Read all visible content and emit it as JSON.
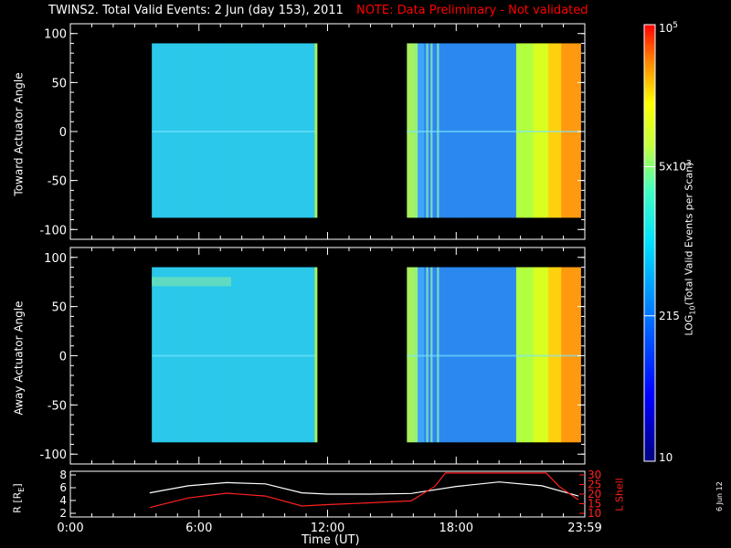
{
  "title": {
    "main": "TWINS2. Total Valid Events:  2 Jun (day 153), 2011",
    "note": "NOTE: Data Preliminary - Not validated"
  },
  "chart_data": [
    {
      "type": "heatmap",
      "ylabel": "Toward Actuator Angle",
      "ylim": [
        -110,
        110
      ],
      "yticks": [
        "100",
        "50",
        "0",
        "-50",
        "-100"
      ],
      "xlim": [
        0,
        24
      ],
      "data_intervals_hours": [
        [
          3.8,
          11.4
        ],
        [
          15.7,
          23.8
        ]
      ]
    },
    {
      "type": "heatmap",
      "ylabel": "Away Actuator Angle",
      "ylim": [
        -110,
        110
      ],
      "yticks": [
        "100",
        "50",
        "0",
        "-50",
        "-100"
      ],
      "xlim": [
        0,
        24
      ],
      "data_intervals_hours": [
        [
          3.8,
          11.4
        ],
        [
          15.7,
          23.8
        ]
      ]
    },
    {
      "type": "line",
      "ylabel": "R [Re]",
      "y2label": "L Shell",
      "yticks": [
        "8",
        "6",
        "4",
        "2"
      ],
      "y2ticks": [
        "30",
        "25",
        "20",
        "15",
        "10"
      ],
      "xticks": [
        "0:00",
        "6:00",
        "12:00",
        "18:00",
        "23:59"
      ],
      "xlabel": "Time (UT)",
      "series": [
        {
          "name": "R",
          "x": [
            3.7,
            5.5,
            7.3,
            9.1,
            10.8,
            12,
            14,
            15.9,
            18,
            20,
            22,
            23.7
          ],
          "values": [
            5.2,
            6.3,
            6.8,
            6.6,
            5.2,
            5.0,
            5.0,
            5.1,
            6.2,
            6.9,
            6.3,
            4.7
          ]
        },
        {
          "name": "L Shell",
          "x": [
            3.7,
            5.5,
            7.3,
            9.1,
            10.8,
            12,
            14,
            15.9,
            17,
            17.5,
            22.2,
            22.8,
            23.7
          ],
          "values": [
            13,
            18,
            20.5,
            19,
            13.8,
            14.5,
            15.5,
            16.5,
            24,
            31,
            31,
            24,
            17
          ]
        }
      ]
    }
  ],
  "colorbar": {
    "label": "LOG10(Total Valid Events per Scan)",
    "ticks": [
      "10",
      "215",
      "5x10^3",
      "10^5"
    ],
    "tick_values": [
      10,
      215,
      5000,
      100000
    ]
  },
  "datestamp": "6 Jun 12"
}
